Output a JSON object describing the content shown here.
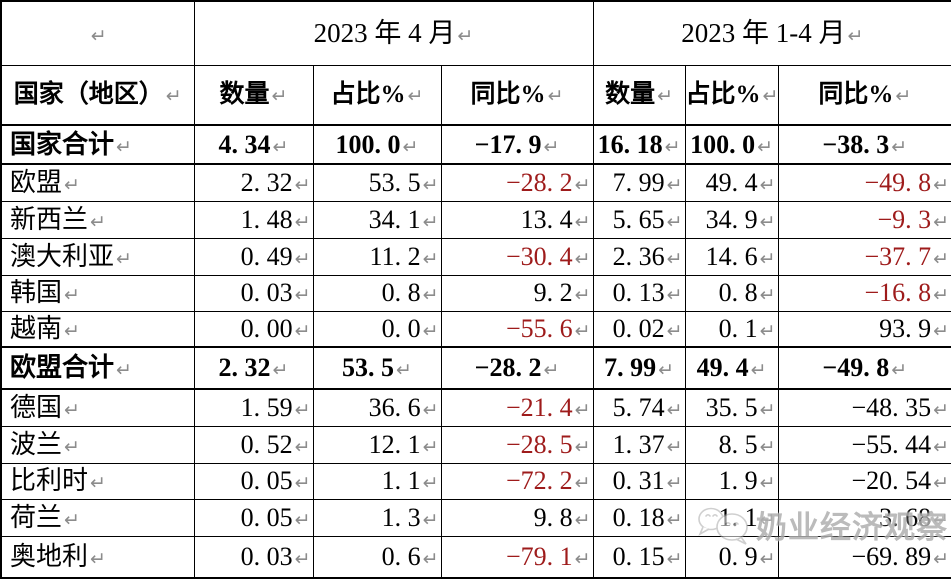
{
  "table": {
    "para_mark": "↵",
    "corner": {
      "mark": "↵"
    },
    "col_groups": [
      {
        "label": "2023 年 4 月"
      },
      {
        "label": "2023 年 1-4 月"
      }
    ],
    "columns": {
      "country": "国家（地区）",
      "quantity": "数量",
      "share": "占比%",
      "yoy": "同比%"
    },
    "rows": [
      {
        "label": "国家合计",
        "bold": true,
        "cells": [
          {
            "v": "4. 34",
            "red": false
          },
          {
            "v": "100. 0",
            "red": false
          },
          {
            "v": "−17. 9",
            "red": false
          },
          {
            "v": "16. 18",
            "red": false
          },
          {
            "v": "100. 0",
            "red": false
          },
          {
            "v": "−38. 3",
            "red": false
          }
        ]
      },
      {
        "label": "欧盟",
        "bold": false,
        "cells": [
          {
            "v": "2. 32",
            "red": false
          },
          {
            "v": "53. 5",
            "red": false
          },
          {
            "v": "−28. 2",
            "red": true
          },
          {
            "v": "7. 99",
            "red": false
          },
          {
            "v": "49. 4",
            "red": false
          },
          {
            "v": "−49. 8",
            "red": true
          }
        ]
      },
      {
        "label": "新西兰",
        "bold": false,
        "cells": [
          {
            "v": "1. 48",
            "red": false
          },
          {
            "v": "34. 1",
            "red": false
          },
          {
            "v": "13. 4",
            "red": false
          },
          {
            "v": "5. 65",
            "red": false
          },
          {
            "v": "34. 9",
            "red": false
          },
          {
            "v": "−9. 3",
            "red": true
          }
        ]
      },
      {
        "label": "澳大利亚",
        "bold": false,
        "cells": [
          {
            "v": "0. 49",
            "red": false
          },
          {
            "v": "11. 2",
            "red": false
          },
          {
            "v": "−30. 4",
            "red": true
          },
          {
            "v": "2. 36",
            "red": false
          },
          {
            "v": "14. 6",
            "red": false
          },
          {
            "v": "−37. 7",
            "red": true
          }
        ]
      },
      {
        "label": "韩国",
        "bold": false,
        "cells": [
          {
            "v": "0. 03",
            "red": false
          },
          {
            "v": "0. 8",
            "red": false
          },
          {
            "v": "9. 2",
            "red": false
          },
          {
            "v": "0. 13",
            "red": false
          },
          {
            "v": "0. 8",
            "red": false
          },
          {
            "v": "−16. 8",
            "red": true
          }
        ]
      },
      {
        "label": "越南",
        "bold": false,
        "cells": [
          {
            "v": "0. 00",
            "red": false
          },
          {
            "v": "0. 0",
            "red": false
          },
          {
            "v": "−55. 6",
            "red": true
          },
          {
            "v": "0. 02",
            "red": false
          },
          {
            "v": "0. 1",
            "red": false
          },
          {
            "v": "93. 9",
            "red": false
          }
        ]
      },
      {
        "label": "欧盟合计",
        "bold": true,
        "cells": [
          {
            "v": "2. 32",
            "red": false
          },
          {
            "v": "53. 5",
            "red": false
          },
          {
            "v": "−28. 2",
            "red": false
          },
          {
            "v": "7. 99",
            "red": false
          },
          {
            "v": "49. 4",
            "red": false
          },
          {
            "v": "−49. 8",
            "red": false
          }
        ]
      },
      {
        "label": "德国",
        "bold": false,
        "cells": [
          {
            "v": "1. 59",
            "red": false
          },
          {
            "v": "36. 6",
            "red": false
          },
          {
            "v": "−21. 4",
            "red": true
          },
          {
            "v": "5. 74",
            "red": false
          },
          {
            "v": "35. 5",
            "red": false
          },
          {
            "v": "−48. 35",
            "red": false
          }
        ]
      },
      {
        "label": "波兰",
        "bold": false,
        "cells": [
          {
            "v": "0. 52",
            "red": false
          },
          {
            "v": "12. 1",
            "red": false
          },
          {
            "v": "−28. 5",
            "red": true
          },
          {
            "v": "1. 37",
            "red": false
          },
          {
            "v": "8. 5",
            "red": false
          },
          {
            "v": "−55. 44",
            "red": false
          }
        ]
      },
      {
        "label": "比利时",
        "bold": false,
        "cells": [
          {
            "v": "0. 05",
            "red": false
          },
          {
            "v": "1. 1",
            "red": false
          },
          {
            "v": "−72. 2",
            "red": true
          },
          {
            "v": "0. 31",
            "red": false
          },
          {
            "v": "1. 9",
            "red": false
          },
          {
            "v": "−20. 54",
            "red": false
          }
        ]
      },
      {
        "label": "荷兰",
        "bold": false,
        "cells": [
          {
            "v": "0. 05",
            "red": false
          },
          {
            "v": "1. 3",
            "red": false
          },
          {
            "v": "9. 8",
            "red": false
          },
          {
            "v": "0. 18",
            "red": false
          },
          {
            "v": "1. 1",
            "red": false
          },
          {
            "v": "3. 68",
            "red": false
          }
        ]
      },
      {
        "label": "奥地利",
        "bold": false,
        "cells": [
          {
            "v": "0. 03",
            "red": false
          },
          {
            "v": "0. 6",
            "red": false
          },
          {
            "v": "−79. 1",
            "red": true
          },
          {
            "v": "0. 15",
            "red": false
          },
          {
            "v": "0. 9",
            "red": false
          },
          {
            "v": "−69. 89",
            "red": false
          }
        ]
      }
    ]
  },
  "watermark": {
    "text": "奶业经济观察"
  },
  "colors": {
    "negative_red": "#9e1b1b",
    "para_mark_gray": "#8c8c8c",
    "watermark_gray": "#b0b0b0",
    "border_black": "#000000"
  }
}
